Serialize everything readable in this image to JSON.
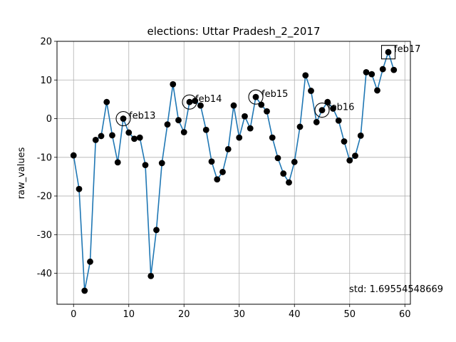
{
  "chart_data": {
    "type": "line",
    "title": "elections: Uttar Pradesh_2_2017",
    "xlabel": "",
    "ylabel": "raw_values",
    "xlim": [
      -3,
      61
    ],
    "ylim": [
      -48,
      20
    ],
    "xticks": [
      0,
      10,
      20,
      30,
      40,
      50,
      60
    ],
    "yticks": [
      -40,
      -30,
      -20,
      -10,
      0,
      10,
      20
    ],
    "grid": true,
    "line_color": "#1f77b4",
    "marker_color": "#000000",
    "series": [
      {
        "x": [
          0,
          1,
          2,
          3,
          4,
          5,
          6,
          7,
          8,
          9,
          10,
          11,
          12,
          13,
          14,
          15,
          16,
          17,
          18,
          19,
          20,
          21,
          22,
          23,
          24,
          25,
          26,
          27,
          28,
          29,
          30,
          31,
          32,
          33,
          34,
          35,
          36,
          37,
          38,
          39,
          40,
          41,
          42,
          43,
          44,
          45,
          46,
          47,
          48,
          49,
          50,
          51,
          52,
          53,
          54,
          55,
          56,
          57,
          58
        ],
        "values": [
          -9.5,
          -18.2,
          -44.5,
          -37,
          -5.5,
          -4.5,
          4.3,
          -4.3,
          -11.3,
          0,
          -3.6,
          -5.2,
          -4.9,
          -12,
          -40.7,
          -28.8,
          -11.5,
          -1.5,
          8.9,
          -0.4,
          -3.5,
          4.3,
          4.6,
          3.4,
          -2.9,
          -11.1,
          -15.7,
          -13.8,
          -7.9,
          3.4,
          -4.9,
          0.6,
          -2.5,
          5.6,
          3.6,
          1.9,
          -4.9,
          -10.2,
          -14.2,
          -16.5,
          -11.2,
          -2.1,
          11.2,
          7.2,
          -0.9,
          2.2,
          4.3,
          2.6,
          -0.5,
          -5.9,
          -10.8,
          -9.6,
          -4.4,
          12,
          11.5,
          7.3,
          12.8,
          17.2,
          12.6
        ]
      }
    ],
    "annotations": [
      {
        "label": "feb13",
        "x": 9,
        "y": 0,
        "marker": "circle"
      },
      {
        "label": "feb14",
        "x": 21,
        "y": 4.3,
        "marker": "circle"
      },
      {
        "label": "feb15",
        "x": 33,
        "y": 5.6,
        "marker": "circle"
      },
      {
        "label": "feb16",
        "x": 45,
        "y": 2.2,
        "marker": "circle"
      },
      {
        "label": "feb17",
        "x": 57,
        "y": 17.2,
        "marker": "square"
      }
    ],
    "std_text": "std: 1.69554548669"
  }
}
